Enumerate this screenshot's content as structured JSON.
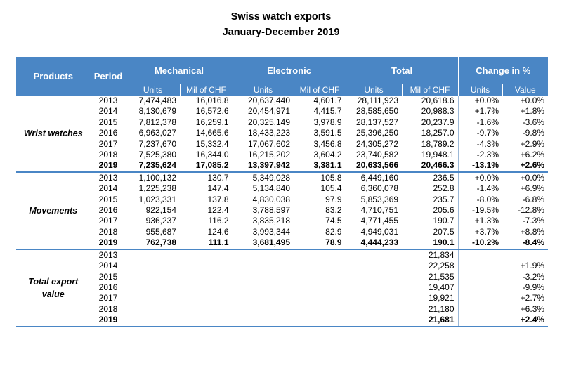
{
  "title_line1": "Swiss watch exports",
  "title_line2": "January-December 2019",
  "headers": {
    "products": "Products",
    "period": "Period",
    "mechanical": "Mechanical",
    "electronic": "Electronic",
    "total": "Total",
    "change": "Change in %",
    "units": "Units",
    "mil_chf": "Mil of CHF",
    "value": "Value"
  },
  "sections": [
    {
      "product": "Wrist watches",
      "rows": [
        [
          "2013",
          "7,474,483",
          "16,016.8",
          "20,637,440",
          "4,601.7",
          "28,111,923",
          "20,618.6",
          "+0.0%",
          "+0.0%"
        ],
        [
          "2014",
          "8,130,679",
          "16,572.6",
          "20,454,971",
          "4,415.7",
          "28,585,650",
          "20,988.3",
          "+1.7%",
          "+1.8%"
        ],
        [
          "2015",
          "7,812,378",
          "16,259.1",
          "20,325,149",
          "3,978.9",
          "28,137,527",
          "20,237.9",
          "-1.6%",
          "-3.6%"
        ],
        [
          "2016",
          "6,963,027",
          "14,665.6",
          "18,433,223",
          "3,591.5",
          "25,396,250",
          "18,257.0",
          "-9.7%",
          "-9.8%"
        ],
        [
          "2017",
          "7,237,670",
          "15,332.4",
          "17,067,602",
          "3,456.8",
          "24,305,272",
          "18,789.2",
          "-4.3%",
          "+2.9%"
        ],
        [
          "2018",
          "7,525,380",
          "16,344.0",
          "16,215,202",
          "3,604.2",
          "23,740,582",
          "19,948.1",
          "-2.3%",
          "+6.2%"
        ],
        [
          "2019",
          "7,235,624",
          "17,085.2",
          "13,397,942",
          "3,381.1",
          "20,633,566",
          "20,466.3",
          "-13.1%",
          "+2.6%"
        ]
      ]
    },
    {
      "product": "Movements",
      "rows": [
        [
          "2013",
          "1,100,132",
          "130.7",
          "5,349,028",
          "105.8",
          "6,449,160",
          "236.5",
          "+0.0%",
          "+0.0%"
        ],
        [
          "2014",
          "1,225,238",
          "147.4",
          "5,134,840",
          "105.4",
          "6,360,078",
          "252.8",
          "-1.4%",
          "+6.9%"
        ],
        [
          "2015",
          "1,023,331",
          "137.8",
          "4,830,038",
          "97.9",
          "5,853,369",
          "235.7",
          "-8.0%",
          "-6.8%"
        ],
        [
          "2016",
          "922,154",
          "122.4",
          "3,788,597",
          "83.2",
          "4,710,751",
          "205.6",
          "-19.5%",
          "-12.8%"
        ],
        [
          "2017",
          "936,237",
          "116.2",
          "3,835,218",
          "74.5",
          "4,771,455",
          "190.7",
          "+1.3%",
          "-7.3%"
        ],
        [
          "2018",
          "955,687",
          "124.6",
          "3,993,344",
          "82.9",
          "4,949,031",
          "207.5",
          "+3.7%",
          "+8.8%"
        ],
        [
          "2019",
          "762,738",
          "111.1",
          "3,681,495",
          "78.9",
          "4,444,233",
          "190.1",
          "-10.2%",
          "-8.4%"
        ]
      ]
    },
    {
      "product": "Total export value",
      "rows": [
        [
          "2013",
          "",
          "",
          "",
          "",
          "",
          "21,834",
          "",
          ""
        ],
        [
          "2014",
          "",
          "",
          "",
          "",
          "",
          "22,258",
          "",
          "+1.9%"
        ],
        [
          "2015",
          "",
          "",
          "",
          "",
          "",
          "21,535",
          "",
          "-3.2%"
        ],
        [
          "2016",
          "",
          "",
          "",
          "",
          "",
          "19,407",
          "",
          "-9.9%"
        ],
        [
          "2017",
          "",
          "",
          "",
          "",
          "",
          "19,921",
          "",
          "+2.7%"
        ],
        [
          "2018",
          "",
          "",
          "",
          "",
          "",
          "21,180",
          "",
          "+6.3%"
        ],
        [
          "2019",
          "",
          "",
          "",
          "",
          "",
          "21,681",
          "",
          "+2.4%"
        ]
      ]
    }
  ]
}
